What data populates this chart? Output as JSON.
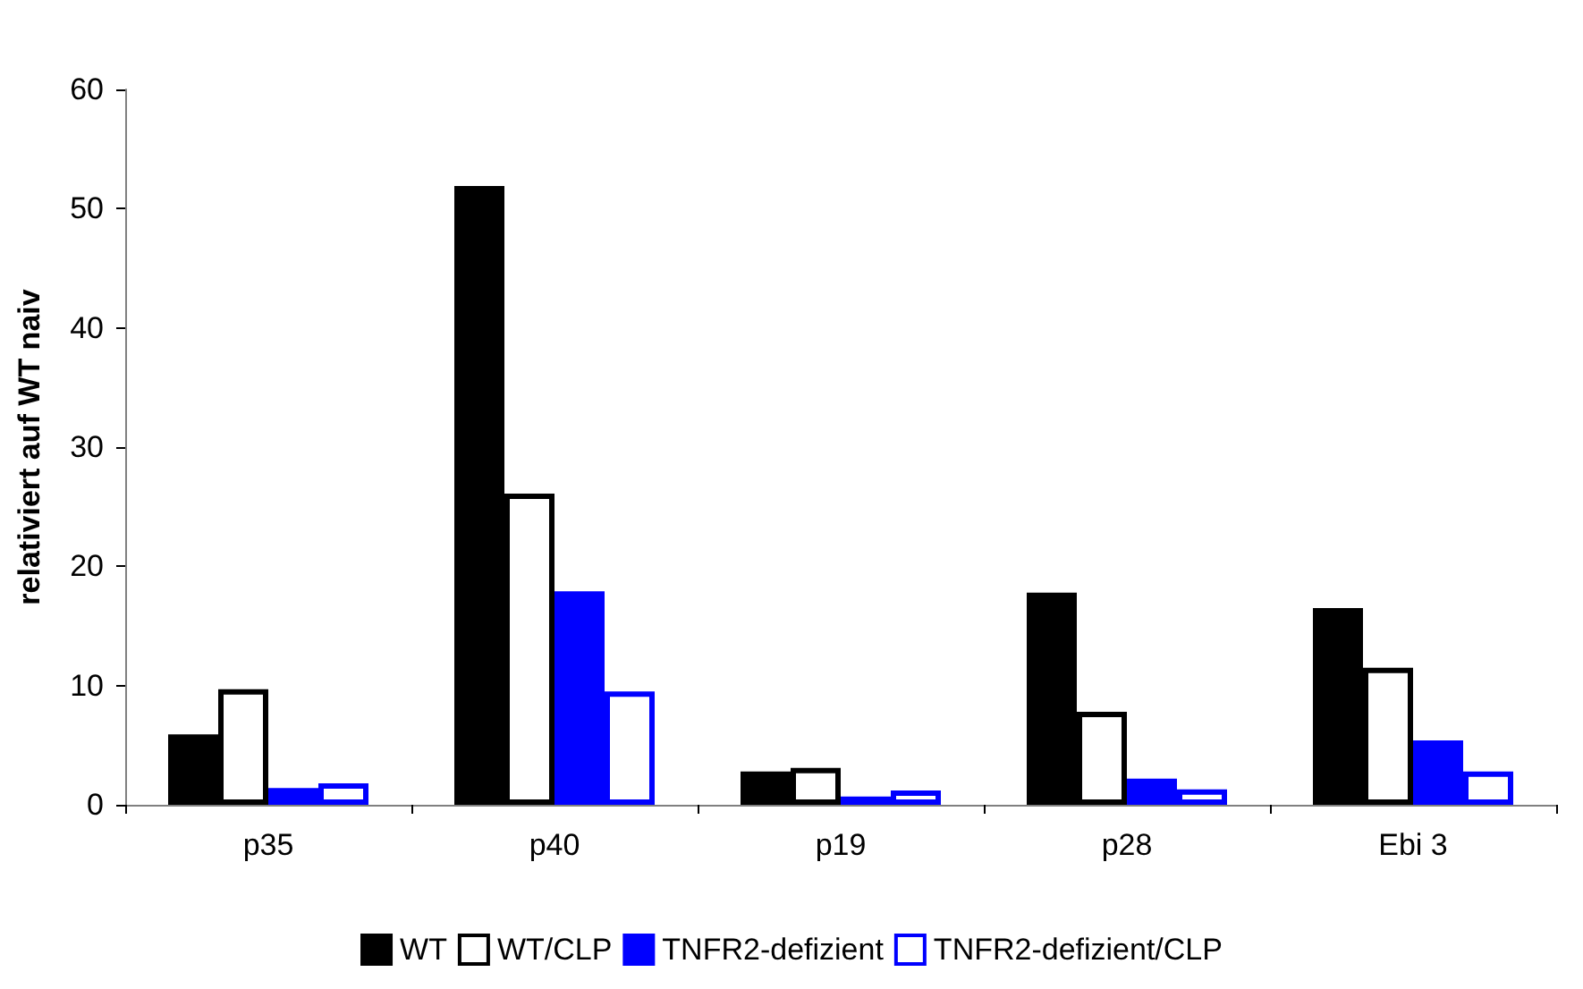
{
  "chart_data": {
    "type": "bar",
    "ylabel": "relativiert auf WT naiv",
    "categories": [
      "p35",
      "p40",
      "p19",
      "p28",
      "Ebi 3"
    ],
    "series": [
      {
        "name": "WT",
        "color": "#000000",
        "values": [
          5.9,
          51.9,
          2.8,
          17.8,
          16.5
        ]
      },
      {
        "name": "WT/CLP",
        "color": "#000000",
        "values": [
          9.7,
          26.1,
          3.1,
          7.8,
          11.5
        ]
      },
      {
        "name": "TNFR2-defizient",
        "color": "#0000ff",
        "values": [
          1.4,
          17.9,
          0.7,
          2.2,
          5.4
        ]
      },
      {
        "name": "TNFR2-defizient/CLP",
        "color": "#0000ff",
        "values": [
          1.8,
          9.5,
          1.2,
          1.3,
          2.8
        ]
      }
    ],
    "ylim": [
      0,
      60
    ],
    "yticks": [
      0,
      10,
      20,
      30,
      40,
      50,
      60
    ],
    "grid": false,
    "legend": "bottom"
  }
}
